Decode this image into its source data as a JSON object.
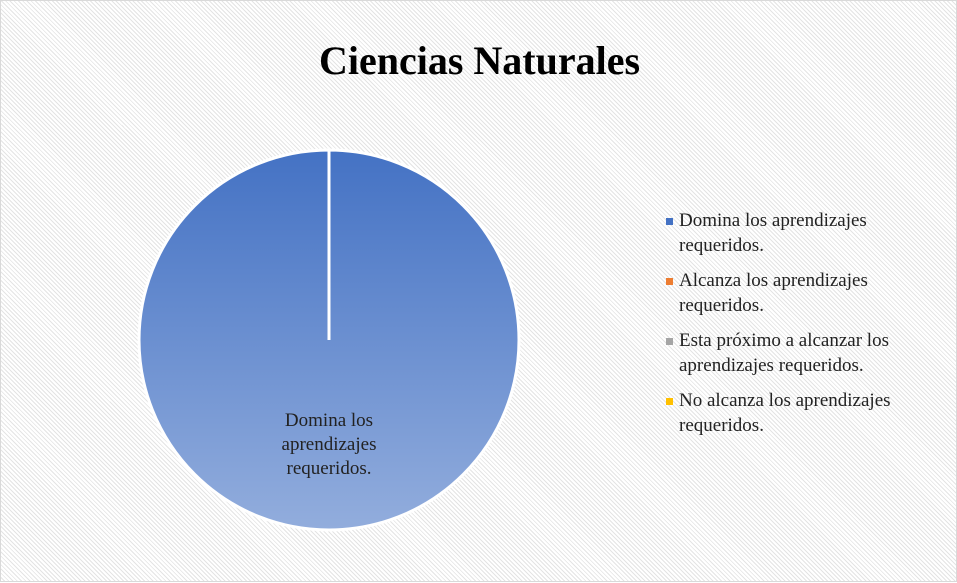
{
  "chart_data": {
    "type": "pie",
    "title": "Ciencias Naturales",
    "categories": [
      "Domina los aprendizajes requeridos.",
      "Alcanza los aprendizajes requeridos.",
      "Esta próximo a alcanzar los aprendizajes requeridos.",
      "No alcanza los aprendizajes requeridos."
    ],
    "values": [
      100,
      0,
      0,
      0
    ],
    "colors": [
      "#4472c4",
      "#ed7d31",
      "#a5a5a5",
      "#ffc000"
    ],
    "legend": "right"
  }
}
